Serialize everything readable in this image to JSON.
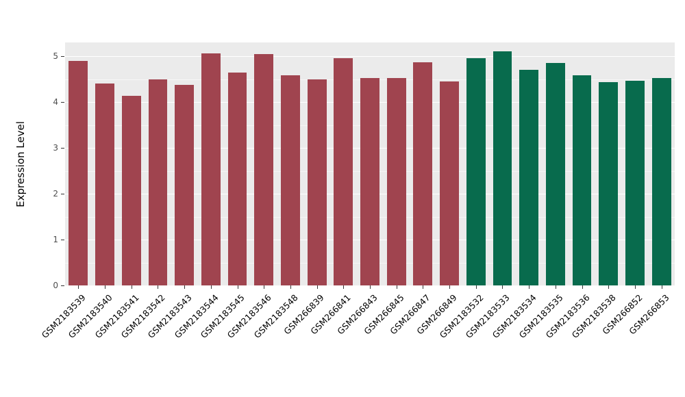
{
  "chart_data": {
    "type": "bar",
    "title": "",
    "xlabel": "",
    "ylabel": "Expression Level",
    "ylim": [
      0,
      5.3
    ],
    "yticks": [
      0,
      1,
      2,
      3,
      4,
      5
    ],
    "grid": "on",
    "legend": "none",
    "panel_background": "#EBEBEB",
    "categories": [
      "GSM2183539",
      "GSM2183540",
      "GSM2183541",
      "GSM2183542",
      "GSM2183543",
      "GSM2183544",
      "GSM2183545",
      "GSM2183546",
      "GSM2183548",
      "GSM266839",
      "GSM266841",
      "GSM266843",
      "GSM266845",
      "GSM266847",
      "GSM266849",
      "GSM2183532",
      "GSM2183533",
      "GSM2183534",
      "GSM2183535",
      "GSM2183536",
      "GSM2183538",
      "GSM266852",
      "GSM266853"
    ],
    "values": [
      4.9,
      4.4,
      4.13,
      4.5,
      4.38,
      5.06,
      4.65,
      5.04,
      4.58,
      4.49,
      4.95,
      4.52,
      4.52,
      4.86,
      4.45,
      4.95,
      5.11,
      4.7,
      4.85,
      4.58,
      4.44,
      4.47,
      4.53
    ],
    "groups": [
      0,
      0,
      0,
      0,
      0,
      0,
      0,
      0,
      0,
      0,
      0,
      0,
      0,
      0,
      0,
      1,
      1,
      1,
      1,
      1,
      1,
      1,
      1
    ],
    "group_colors": [
      "#A0444F",
      "#086B4D"
    ]
  }
}
